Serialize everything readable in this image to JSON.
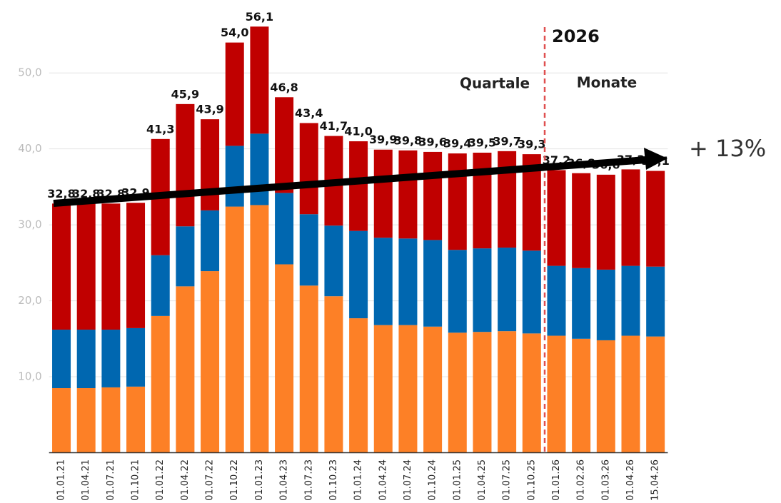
{
  "chart_data": {
    "type": "stacked_bar",
    "categories": [
      "01.01.21",
      "01.04.21",
      "01.07.21",
      "01.10.21",
      "01.01.22",
      "01.04.22",
      "01.07.22",
      "01.10.22",
      "01.01.23",
      "01.04.23",
      "01.07.23",
      "01.10.23",
      "01.01.24",
      "01.04.24",
      "01.07.24",
      "01.10.24",
      "01.01.25",
      "01.04.25",
      "01.07.25",
      "01.10.25",
      "01.01.26",
      "01.02.26",
      "01.03.26",
      "01.04.26",
      "15.04.26"
    ],
    "series": [
      {
        "color": "#fd8026",
        "values": [
          8.5,
          8.5,
          8.6,
          8.7,
          18.0,
          21.9,
          23.9,
          32.4,
          32.6,
          24.8,
          22.0,
          20.6,
          17.7,
          16.8,
          16.8,
          16.6,
          15.8,
          15.9,
          16.0,
          15.7,
          15.4,
          15.0,
          14.8,
          15.4,
          15.3
        ]
      },
      {
        "color": "#0067b0",
        "values": [
          7.7,
          7.7,
          7.6,
          7.7,
          8.0,
          7.9,
          8.0,
          8.0,
          9.4,
          9.4,
          9.4,
          9.3,
          11.5,
          11.5,
          11.4,
          11.4,
          10.9,
          11.0,
          11.0,
          10.9,
          9.2,
          9.3,
          9.3,
          9.2,
          9.2
        ]
      },
      {
        "color": "#c00000",
        "values": [
          16.6,
          16.6,
          16.6,
          16.5,
          15.3,
          16.1,
          12.0,
          13.6,
          14.1,
          12.6,
          12.0,
          11.8,
          11.8,
          11.6,
          11.6,
          11.6,
          12.7,
          12.6,
          12.7,
          12.7,
          12.6,
          12.5,
          12.5,
          12.7,
          12.6
        ]
      }
    ],
    "totals": [
      32.8,
      32.8,
      32.8,
      32.9,
      41.3,
      45.9,
      43.9,
      54.0,
      56.1,
      46.8,
      43.4,
      41.7,
      41.0,
      39.9,
      39.8,
      39.6,
      39.4,
      39.5,
      39.7,
      39.3,
      37.2,
      36.8,
      36.6,
      37.3,
      37.1
    ],
    "total_labels": [
      "32,8",
      "32,8",
      "32,8",
      "32,9",
      "41,3",
      "45,9",
      "43,9",
      "54,0",
      "56,1",
      "46,8",
      "43,4",
      "41,7",
      "41,0",
      "39,9",
      "39,8",
      "39,6",
      "39,4",
      "39,5",
      "39,7",
      "39,3",
      "37,2",
      "36,8",
      "36,6",
      "37,3",
      "37,1"
    ],
    "ylim": [
      0,
      59.6
    ],
    "yticks": [
      {
        "value": 10,
        "label": "10,0"
      },
      {
        "value": 20,
        "label": "20,0"
      },
      {
        "value": 30,
        "label": "30,0"
      },
      {
        "value": 40,
        "label": "40,0"
      },
      {
        "value": 50,
        "label": "50,0"
      }
    ],
    "grid": true,
    "annotations": {
      "year": "2026",
      "left_period": "Quartale",
      "right_period": "Monate",
      "change": "+ 13%"
    }
  }
}
